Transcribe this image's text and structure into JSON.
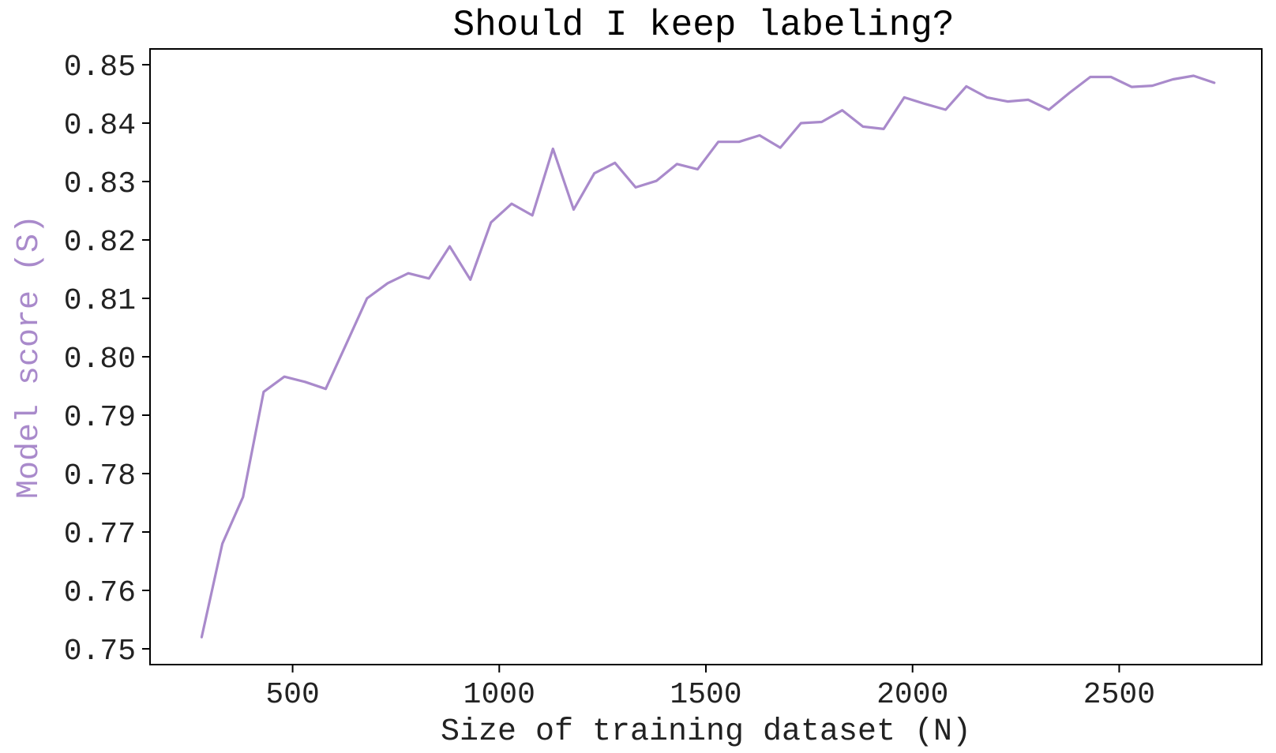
{
  "colors": {
    "line": "#a98acb",
    "ylabel": "#a98acb",
    "axes": "#000000",
    "text": "#222222"
  },
  "chart_data": {
    "type": "line",
    "title": "Should I keep labeling?",
    "xlabel": "Size of training dataset (N)",
    "ylabel": "Model score (S)",
    "xlim": [
      155,
      2845
    ],
    "ylim": [
      0.7473,
      0.8527
    ],
    "xticks": [
      500,
      1000,
      1500,
      2000,
      2500
    ],
    "xtick_labels": [
      "500",
      "1000",
      "1500",
      "2000",
      "2500"
    ],
    "yticks": [
      0.75,
      0.76,
      0.77,
      0.78,
      0.79,
      0.8,
      0.81,
      0.82,
      0.83,
      0.84,
      0.85
    ],
    "ytick_labels": [
      "0.75",
      "0.76",
      "0.77",
      "0.78",
      "0.79",
      "0.80",
      "0.81",
      "0.82",
      "0.83",
      "0.84",
      "0.85"
    ],
    "grid": false,
    "legend": false,
    "series": [
      {
        "x": [
          280,
          330,
          380,
          430,
          480,
          530,
          580,
          630,
          680,
          730,
          780,
          830,
          880,
          930,
          980,
          1030,
          1080,
          1130,
          1180,
          1230,
          1280,
          1330,
          1380,
          1430,
          1480,
          1530,
          1580,
          1630,
          1680,
          1730,
          1780,
          1830,
          1880,
          1930,
          1980,
          2030,
          2080,
          2130,
          2180,
          2230,
          2280,
          2330,
          2380,
          2430,
          2480,
          2530,
          2580,
          2630,
          2680,
          2730
        ],
        "y": [
          0.752,
          0.768,
          0.776,
          0.794,
          0.7966,
          0.7957,
          0.7945,
          0.8022,
          0.81,
          0.8126,
          0.8143,
          0.8134,
          0.8189,
          0.8132,
          0.823,
          0.8262,
          0.8242,
          0.8356,
          0.8252,
          0.8314,
          0.8332,
          0.829,
          0.8301,
          0.833,
          0.8321,
          0.8368,
          0.8368,
          0.8379,
          0.8358,
          0.84,
          0.8402,
          0.8422,
          0.8394,
          0.839,
          0.8444,
          0.8433,
          0.8423,
          0.8463,
          0.8444,
          0.8437,
          0.844,
          0.8423,
          0.8452,
          0.8479,
          0.8479,
          0.8462,
          0.8464,
          0.8475,
          0.8481,
          0.8469
        ]
      }
    ]
  }
}
